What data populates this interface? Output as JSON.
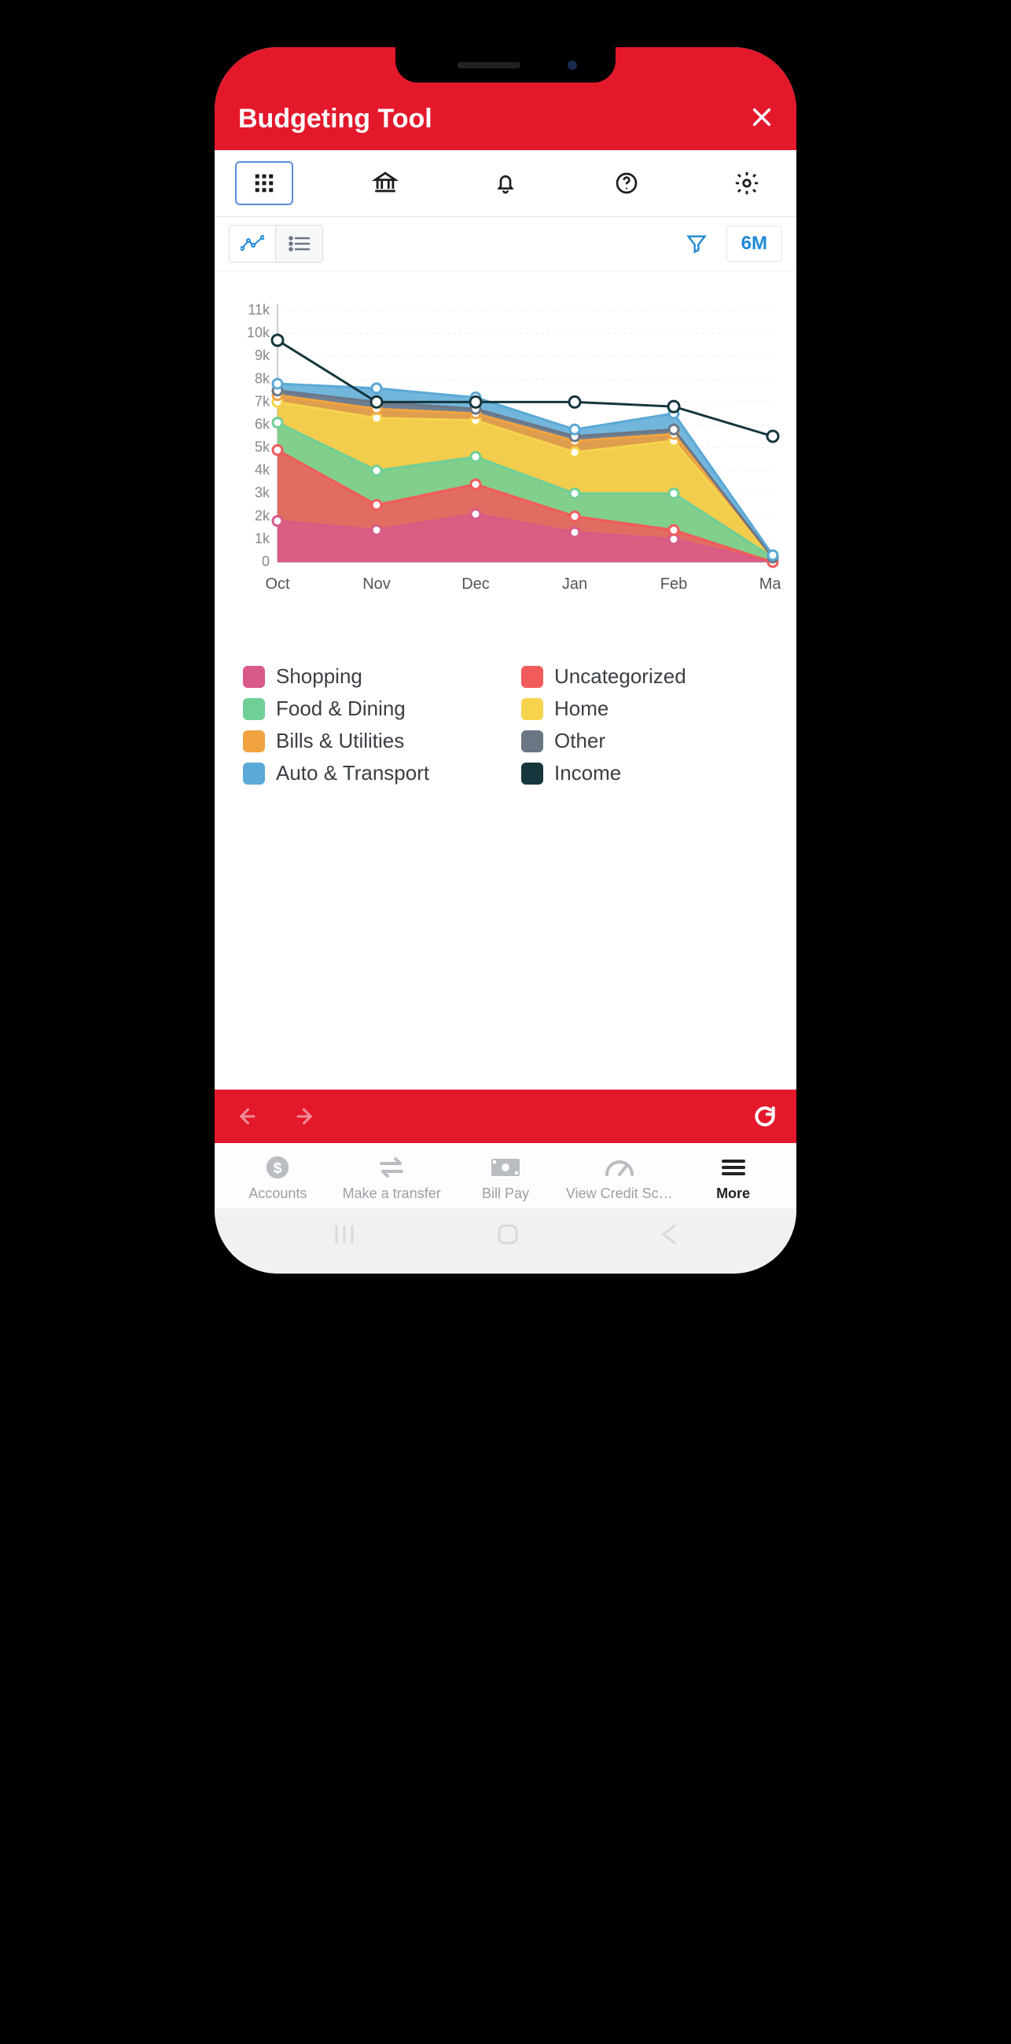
{
  "header": {
    "title": "Budgeting Tool"
  },
  "subbar": {
    "range_label": "6M"
  },
  "chart": {
    "type": "stacked-area-with-income-line",
    "y": {
      "min": 0,
      "max": 11,
      "step": 1,
      "unit": "k",
      "labels": [
        "0",
        "1k",
        "2k",
        "3k",
        "4k",
        "5k",
        "6k",
        "7k",
        "8k",
        "9k",
        "10k",
        "11k"
      ]
    },
    "x": {
      "labels": [
        "Oct",
        "Nov",
        "Dec",
        "Jan",
        "Feb",
        "Mar"
      ]
    },
    "stack_order": [
      "shopping",
      "uncategorized",
      "food_dining",
      "home",
      "bills_utilities",
      "other",
      "auto_transport"
    ],
    "series": {
      "shopping": {
        "label": "Shopping",
        "color": "#d85a88",
        "values": [
          1.8,
          1.4,
          2.1,
          1.3,
          1.0,
          0.0
        ]
      },
      "uncategorized": {
        "label": "Uncategorized",
        "color": "#f25b5b",
        "values": [
          3.1,
          1.1,
          1.3,
          0.7,
          0.4,
          0.0
        ]
      },
      "food_dining": {
        "label": "Food & Dining",
        "color": "#6fcf97",
        "values": [
          1.2,
          1.5,
          1.2,
          1.0,
          1.6,
          0.2
        ]
      },
      "home": {
        "label": "Home",
        "color": "#f6d44d",
        "values": [
          0.9,
          2.3,
          1.6,
          1.8,
          2.3,
          0.0
        ]
      },
      "bills_utilities": {
        "label": "Bills & Utilities",
        "color": "#f2a341",
        "values": [
          0.3,
          0.4,
          0.3,
          0.5,
          0.3,
          0.0
        ]
      },
      "other": {
        "label": "Other",
        "color": "#6b7685",
        "values": [
          0.2,
          0.3,
          0.2,
          0.2,
          0.2,
          0.0
        ]
      },
      "auto_transport": {
        "label": "Auto & Transport",
        "color": "#5aa9d6",
        "values": [
          0.3,
          0.6,
          0.5,
          0.3,
          0.7,
          0.1
        ]
      },
      "income": {
        "label": "Income",
        "color": "#15363c",
        "values": [
          9.7,
          7.0,
          7.0,
          7.0,
          6.8,
          5.5
        ],
        "style": "line"
      }
    },
    "background": "#ffffff",
    "grid_color": "#eeeeee",
    "axis_color": "#cccccc",
    "marker_radius": 6
  },
  "legend_left": [
    "shopping",
    "food_dining",
    "bills_utilities",
    "auto_transport"
  ],
  "legend_right": [
    "uncategorized",
    "home",
    "other",
    "income"
  ],
  "red_nav": {
    "back_enabled": false,
    "fwd_enabled": false
  },
  "tabs": [
    {
      "key": "accounts",
      "label": "Accounts"
    },
    {
      "key": "transfer",
      "label": "Make a transfer"
    },
    {
      "key": "billpay",
      "label": "Bill Pay"
    },
    {
      "key": "credit",
      "label": "View Credit Sc…"
    },
    {
      "key": "more",
      "label": "More",
      "active": true
    }
  ]
}
